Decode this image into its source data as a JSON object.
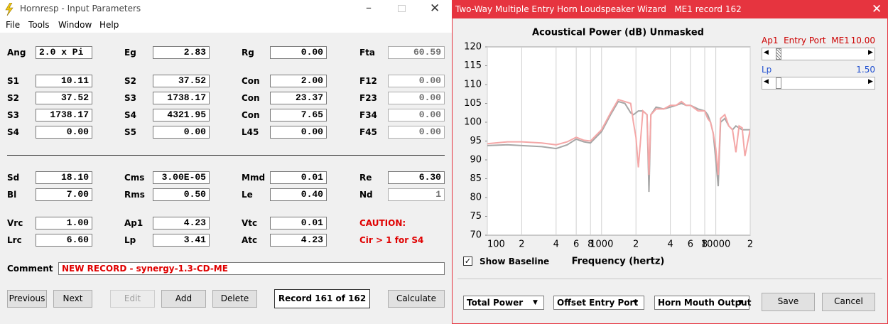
{
  "left_window": {
    "title": "Hornresp - Input Parameters",
    "menu": [
      "File",
      "Tools",
      "Window",
      "Help"
    ],
    "parameters": [
      [
        {
          "label": "Ang",
          "value": "2.0 x Pi"
        },
        {
          "label": "Eg",
          "value": "2.83"
        },
        {
          "label": "Rg",
          "value": "0.00"
        },
        {
          "label": "Fta",
          "value": "60.59",
          "readonly": true
        }
      ],
      [
        {
          "label": "S1",
          "value": "10.11"
        },
        {
          "label": "S2",
          "value": "37.52"
        },
        {
          "label": "Con",
          "value": "2.00"
        },
        {
          "label": "F12",
          "value": "0.00",
          "readonly": true
        }
      ],
      [
        {
          "label": "S2",
          "value": "37.52"
        },
        {
          "label": "S3",
          "value": "1738.17"
        },
        {
          "label": "Con",
          "value": "23.37"
        },
        {
          "label": "F23",
          "value": "0.00",
          "readonly": true
        }
      ],
      [
        {
          "label": "S3",
          "value": "1738.17"
        },
        {
          "label": "S4",
          "value": "4321.95"
        },
        {
          "label": "Con",
          "value": "7.65"
        },
        {
          "label": "F34",
          "value": "0.00",
          "readonly": true
        }
      ],
      [
        {
          "label": "S4",
          "value": "0.00"
        },
        {
          "label": "S5",
          "value": "0.00"
        },
        {
          "label": "L45",
          "value": "0.00"
        },
        {
          "label": "F45",
          "value": "0.00",
          "readonly": true
        }
      ],
      [
        {
          "label": "Sd",
          "value": "18.10"
        },
        {
          "label": "Cms",
          "value": "3.00E-05"
        },
        {
          "label": "Mmd",
          "value": "0.01"
        },
        {
          "label": "Re",
          "value": "6.30"
        }
      ],
      [
        {
          "label": "Bl",
          "value": "7.00"
        },
        {
          "label": "Rms",
          "value": "0.50"
        },
        {
          "label": "Le",
          "value": "0.40"
        },
        {
          "label": "Nd",
          "value": "1",
          "readonly": true
        }
      ],
      [
        {
          "label": "Vrc",
          "value": "1.00"
        },
        {
          "label": "Ap1",
          "value": "4.23"
        },
        {
          "label": "Vtc",
          "value": "0.01"
        },
        {
          "note": "CAUTION:"
        }
      ],
      [
        {
          "label": "Lrc",
          "value": "6.60"
        },
        {
          "label": "Lp",
          "value": "3.41"
        },
        {
          "label": "Atc",
          "value": "4.23"
        },
        {
          "note": "Cir > 1 for S4"
        }
      ]
    ],
    "comment": {
      "label": "Comment",
      "value": "NEW RECORD - synergy-1.3-CD-ME"
    },
    "buttons": [
      {
        "text": "Previous"
      },
      {
        "text": "Next"
      },
      {
        "text": "Edit",
        "disabled": true
      },
      {
        "text": "Add"
      },
      {
        "text": "Delete"
      }
    ],
    "record": "Record 161 of 162",
    "calculate": "Calculate"
  },
  "right_window": {
    "title": "Two-Way Multiple Entry Horn Loudspeaker Wizard   ME1 record 162",
    "sliders": [
      {
        "label": "Ap1  Entry Port  ME1",
        "value": "10.00",
        "color": "#cc0000"
      },
      {
        "label": "Lp",
        "value": "1.50",
        "color": "#1f4fd0"
      }
    ],
    "show_baseline": "Show Baseline",
    "dropdowns": [
      "Total Power",
      "Offset Entry Port",
      "Horn Mouth Output"
    ],
    "buttons": [
      "Save",
      "Cancel"
    ]
  },
  "chart_data": {
    "type": "line",
    "title": "Acoustical Power (dB)   Unmasked",
    "x_label": "Frequency (hertz)",
    "xscale": "log",
    "x": [
      100,
      150,
      200,
      300,
      400,
      500,
      600,
      700,
      800,
      1000,
      1200,
      1400,
      1600,
      1800,
      1900,
      2000,
      2100,
      2300,
      2500,
      2600,
      2700,
      3000,
      3500,
      4000,
      4500,
      5000,
      5500,
      6000,
      7000,
      8000,
      8500,
      9000,
      9500,
      10000,
      10500,
      11000,
      12000,
      13000,
      14000,
      15000,
      16000,
      17000,
      18000,
      20000
    ],
    "series": [
      {
        "color": "#a6a6a6",
        "values": [
          93.8,
          94.0,
          93.8,
          93.5,
          93.0,
          94.0,
          95.5,
          94.8,
          94.5,
          97.5,
          102,
          105.5,
          105,
          102.5,
          102,
          102.5,
          103,
          103,
          102,
          81.5,
          102,
          104,
          103.5,
          104,
          104.5,
          105,
          104.5,
          104.5,
          103.5,
          103,
          102,
          100,
          97,
          90,
          83,
          100,
          101,
          99,
          98,
          99,
          98.5,
          98,
          98,
          98
        ]
      },
      {
        "color": "#f4a7a7",
        "values": [
          94.3,
          94.8,
          94.8,
          94.5,
          94.0,
          94.8,
          96.0,
          95.2,
          95.0,
          98.0,
          102.5,
          106,
          105.5,
          105,
          100,
          96,
          88,
          103,
          102,
          86,
          102,
          103.5,
          103.5,
          104.5,
          104.5,
          105.5,
          104.5,
          104.5,
          103,
          103,
          101,
          100,
          97,
          93,
          86,
          101,
          102,
          99,
          98,
          92,
          99,
          98.5,
          91,
          98
        ]
      }
    ],
    "xlim": [
      100,
      20000
    ],
    "xticks": [
      100,
      {
        "value": 200,
        "label": "2"
      },
      {
        "value": 400,
        "label": "4"
      },
      {
        "value": 600,
        "label": "6"
      },
      {
        "value": 800,
        "label": "8"
      },
      1000,
      {
        "value": 2000,
        "label": "2"
      },
      {
        "value": 4000,
        "label": "4"
      },
      {
        "value": 6000,
        "label": "6"
      },
      {
        "value": 8000,
        "label": "8"
      },
      10000,
      {
        "value": 20000,
        "label": "2"
      }
    ],
    "ylim": [
      70,
      120
    ],
    "yticks": [
      70,
      75,
      80,
      85,
      90,
      95,
      100,
      105,
      110,
      115,
      120
    ],
    "grid": true
  }
}
